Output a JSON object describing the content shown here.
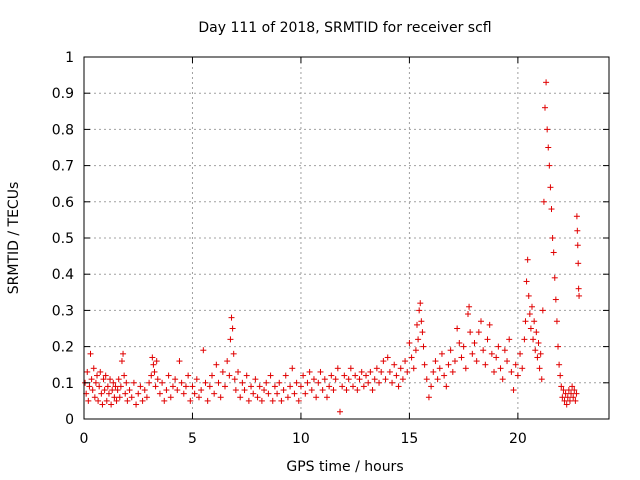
{
  "chart_data": {
    "type": "scatter",
    "title": "Day 111 of 2018, SRMTID for receiver scfl",
    "xlabel": "GPS time / hours",
    "ylabel": "SRMTID / TECUs",
    "xlim": [
      0,
      24.2
    ],
    "ylim": [
      0,
      1
    ],
    "xticks": [
      0,
      5,
      10,
      15,
      20
    ],
    "xtick_labels": [
      "0",
      "5",
      "10",
      "15",
      "20"
    ],
    "yticks": [
      0,
      0.1,
      0.2,
      0.3,
      0.4,
      0.5,
      0.6,
      0.7,
      0.8,
      0.9,
      1
    ],
    "ytick_labels": [
      "0",
      "0.1",
      "0.2",
      "0.3",
      "0.4",
      "0.5",
      "0.6",
      "0.7",
      "0.8",
      "0.9",
      "1"
    ],
    "grid": true,
    "marker": "+",
    "marker_color": "#e00000",
    "series": [
      {
        "name": "SRMTID",
        "points": [
          [
            0.05,
            0.1
          ],
          [
            0.1,
            0.07
          ],
          [
            0.15,
            0.13
          ],
          [
            0.2,
            0.05
          ],
          [
            0.25,
            0.09
          ],
          [
            0.3,
            0.18
          ],
          [
            0.35,
            0.11
          ],
          [
            0.4,
            0.08
          ],
          [
            0.45,
            0.14
          ],
          [
            0.5,
            0.06
          ],
          [
            0.55,
            0.1
          ],
          [
            0.6,
            0.12
          ],
          [
            0.65,
            0.05
          ],
          [
            0.7,
            0.09
          ],
          [
            0.75,
            0.13
          ],
          [
            0.8,
            0.07
          ],
          [
            0.85,
            0.04
          ],
          [
            0.9,
            0.11
          ],
          [
            0.95,
            0.08
          ],
          [
            1.0,
            0.12
          ],
          [
            1.05,
            0.05
          ],
          [
            1.1,
            0.09
          ],
          [
            1.15,
            0.07
          ],
          [
            1.2,
            0.11
          ],
          [
            1.25,
            0.04
          ],
          [
            1.3,
            0.08
          ],
          [
            1.35,
            0.1
          ],
          [
            1.4,
            0.06
          ],
          [
            1.45,
            0.09
          ],
          [
            1.5,
            0.05
          ],
          [
            1.55,
            0.08
          ],
          [
            1.6,
            0.11
          ],
          [
            1.65,
            0.06
          ],
          [
            1.7,
            0.09
          ],
          [
            1.75,
            0.16
          ],
          [
            1.8,
            0.18
          ],
          [
            1.85,
            0.12
          ],
          [
            1.9,
            0.07
          ],
          [
            1.95,
            0.1
          ],
          [
            2.0,
            0.05
          ],
          [
            2.1,
            0.08
          ],
          [
            2.2,
            0.06
          ],
          [
            2.3,
            0.1
          ],
          [
            2.4,
            0.04
          ],
          [
            2.5,
            0.07
          ],
          [
            2.6,
            0.09
          ],
          [
            2.7,
            0.05
          ],
          [
            2.8,
            0.08
          ],
          [
            2.9,
            0.06
          ],
          [
            3.0,
            0.1
          ],
          [
            3.1,
            0.12
          ],
          [
            3.15,
            0.17
          ],
          [
            3.2,
            0.15
          ],
          [
            3.25,
            0.13
          ],
          [
            3.3,
            0.09
          ],
          [
            3.35,
            0.16
          ],
          [
            3.4,
            0.11
          ],
          [
            3.5,
            0.07
          ],
          [
            3.6,
            0.1
          ],
          [
            3.7,
            0.05
          ],
          [
            3.8,
            0.08
          ],
          [
            3.9,
            0.12
          ],
          [
            4.0,
            0.06
          ],
          [
            4.1,
            0.09
          ],
          [
            4.2,
            0.11
          ],
          [
            4.3,
            0.08
          ],
          [
            4.4,
            0.16
          ],
          [
            4.5,
            0.1
          ],
          [
            4.6,
            0.07
          ],
          [
            4.7,
            0.09
          ],
          [
            4.8,
            0.12
          ],
          [
            4.9,
            0.05
          ],
          [
            5.0,
            0.09
          ],
          [
            5.1,
            0.07
          ],
          [
            5.2,
            0.11
          ],
          [
            5.3,
            0.06
          ],
          [
            5.4,
            0.08
          ],
          [
            5.5,
            0.19
          ],
          [
            5.6,
            0.1
          ],
          [
            5.7,
            0.05
          ],
          [
            5.8,
            0.09
          ],
          [
            5.9,
            0.12
          ],
          [
            6.0,
            0.07
          ],
          [
            6.1,
            0.15
          ],
          [
            6.2,
            0.1
          ],
          [
            6.3,
            0.06
          ],
          [
            6.4,
            0.13
          ],
          [
            6.5,
            0.09
          ],
          [
            6.6,
            0.16
          ],
          [
            6.7,
            0.12
          ],
          [
            6.75,
            0.22
          ],
          [
            6.8,
            0.28
          ],
          [
            6.85,
            0.25
          ],
          [
            6.9,
            0.18
          ],
          [
            6.95,
            0.11
          ],
          [
            7.0,
            0.08
          ],
          [
            7.1,
            0.13
          ],
          [
            7.2,
            0.06
          ],
          [
            7.3,
            0.1
          ],
          [
            7.4,
            0.08
          ],
          [
            7.5,
            0.12
          ],
          [
            7.6,
            0.05
          ],
          [
            7.7,
            0.09
          ],
          [
            7.8,
            0.07
          ],
          [
            7.9,
            0.11
          ],
          [
            8.0,
            0.06
          ],
          [
            8.1,
            0.09
          ],
          [
            8.2,
            0.05
          ],
          [
            8.3,
            0.08
          ],
          [
            8.4,
            0.1
          ],
          [
            8.5,
            0.07
          ],
          [
            8.6,
            0.12
          ],
          [
            8.7,
            0.05
          ],
          [
            8.8,
            0.09
          ],
          [
            8.9,
            0.07
          ],
          [
            9.0,
            0.1
          ],
          [
            9.1,
            0.05
          ],
          [
            9.2,
            0.08
          ],
          [
            9.3,
            0.12
          ],
          [
            9.4,
            0.06
          ],
          [
            9.5,
            0.09
          ],
          [
            9.6,
            0.14
          ],
          [
            9.7,
            0.07
          ],
          [
            9.8,
            0.1
          ],
          [
            9.9,
            0.05
          ],
          [
            10.0,
            0.09
          ],
          [
            10.1,
            0.12
          ],
          [
            10.2,
            0.07
          ],
          [
            10.3,
            0.1
          ],
          [
            10.4,
            0.13
          ],
          [
            10.5,
            0.08
          ],
          [
            10.6,
            0.11
          ],
          [
            10.7,
            0.06
          ],
          [
            10.8,
            0.1
          ],
          [
            10.9,
            0.13
          ],
          [
            11.0,
            0.08
          ],
          [
            11.1,
            0.11
          ],
          [
            11.2,
            0.06
          ],
          [
            11.3,
            0.09
          ],
          [
            11.4,
            0.12
          ],
          [
            11.5,
            0.08
          ],
          [
            11.6,
            0.11
          ],
          [
            11.7,
            0.14
          ],
          [
            11.8,
            0.02
          ],
          [
            11.9,
            0.09
          ],
          [
            12.0,
            0.12
          ],
          [
            12.1,
            0.08
          ],
          [
            12.2,
            0.11
          ],
          [
            12.3,
            0.14
          ],
          [
            12.4,
            0.09
          ],
          [
            12.5,
            0.12
          ],
          [
            12.6,
            0.08
          ],
          [
            12.7,
            0.11
          ],
          [
            12.8,
            0.13
          ],
          [
            12.9,
            0.09
          ],
          [
            13.0,
            0.12
          ],
          [
            13.1,
            0.1
          ],
          [
            13.2,
            0.13
          ],
          [
            13.3,
            0.08
          ],
          [
            13.4,
            0.11
          ],
          [
            13.5,
            0.14
          ],
          [
            13.6,
            0.1
          ],
          [
            13.7,
            0.13
          ],
          [
            13.8,
            0.16
          ],
          [
            13.9,
            0.11
          ],
          [
            14.0,
            0.17
          ],
          [
            14.1,
            0.13
          ],
          [
            14.2,
            0.1
          ],
          [
            14.3,
            0.15
          ],
          [
            14.4,
            0.12
          ],
          [
            14.5,
            0.09
          ],
          [
            14.6,
            0.14
          ],
          [
            14.7,
            0.11
          ],
          [
            14.8,
            0.16
          ],
          [
            14.9,
            0.13
          ],
          [
            15.0,
            0.21
          ],
          [
            15.1,
            0.17
          ],
          [
            15.2,
            0.14
          ],
          [
            15.3,
            0.19
          ],
          [
            15.35,
            0.26
          ],
          [
            15.4,
            0.22
          ],
          [
            15.45,
            0.3
          ],
          [
            15.5,
            0.32
          ],
          [
            15.55,
            0.27
          ],
          [
            15.6,
            0.24
          ],
          [
            15.65,
            0.2
          ],
          [
            15.7,
            0.15
          ],
          [
            15.8,
            0.11
          ],
          [
            15.9,
            0.06
          ],
          [
            16.0,
            0.09
          ],
          [
            16.1,
            0.13
          ],
          [
            16.2,
            0.16
          ],
          [
            16.3,
            0.11
          ],
          [
            16.4,
            0.14
          ],
          [
            16.5,
            0.18
          ],
          [
            16.6,
            0.12
          ],
          [
            16.7,
            0.09
          ],
          [
            16.8,
            0.15
          ],
          [
            16.9,
            0.19
          ],
          [
            17.0,
            0.13
          ],
          [
            17.1,
            0.16
          ],
          [
            17.2,
            0.25
          ],
          [
            17.3,
            0.21
          ],
          [
            17.4,
            0.17
          ],
          [
            17.5,
            0.2
          ],
          [
            17.6,
            0.14
          ],
          [
            17.7,
            0.29
          ],
          [
            17.75,
            0.31
          ],
          [
            17.8,
            0.24
          ],
          [
            17.9,
            0.18
          ],
          [
            18.0,
            0.21
          ],
          [
            18.1,
            0.16
          ],
          [
            18.2,
            0.24
          ],
          [
            18.3,
            0.27
          ],
          [
            18.4,
            0.19
          ],
          [
            18.5,
            0.15
          ],
          [
            18.6,
            0.22
          ],
          [
            18.7,
            0.26
          ],
          [
            18.8,
            0.18
          ],
          [
            18.9,
            0.13
          ],
          [
            19.0,
            0.17
          ],
          [
            19.1,
            0.2
          ],
          [
            19.2,
            0.14
          ],
          [
            19.3,
            0.11
          ],
          [
            19.4,
            0.19
          ],
          [
            19.5,
            0.16
          ],
          [
            19.6,
            0.22
          ],
          [
            19.7,
            0.13
          ],
          [
            19.8,
            0.08
          ],
          [
            19.9,
            0.15
          ],
          [
            20.0,
            0.12
          ],
          [
            20.1,
            0.18
          ],
          [
            20.2,
            0.14
          ],
          [
            20.3,
            0.22
          ],
          [
            20.35,
            0.27
          ],
          [
            20.4,
            0.38
          ],
          [
            20.45,
            0.44
          ],
          [
            20.5,
            0.34
          ],
          [
            20.55,
            0.29
          ],
          [
            20.6,
            0.25
          ],
          [
            20.65,
            0.31
          ],
          [
            20.7,
            0.22
          ],
          [
            20.75,
            0.27
          ],
          [
            20.8,
            0.19
          ],
          [
            20.85,
            0.24
          ],
          [
            20.9,
            0.17
          ],
          [
            20.95,
            0.21
          ],
          [
            21.0,
            0.14
          ],
          [
            21.05,
            0.18
          ],
          [
            21.1,
            0.11
          ],
          [
            21.15,
            0.3
          ],
          [
            21.2,
            0.6
          ],
          [
            21.25,
            0.86
          ],
          [
            21.3,
            0.93
          ],
          [
            21.35,
            0.8
          ],
          [
            21.4,
            0.75
          ],
          [
            21.45,
            0.7
          ],
          [
            21.5,
            0.64
          ],
          [
            21.55,
            0.58
          ],
          [
            21.6,
            0.5
          ],
          [
            21.65,
            0.46
          ],
          [
            21.7,
            0.39
          ],
          [
            21.75,
            0.33
          ],
          [
            21.8,
            0.27
          ],
          [
            21.85,
            0.2
          ],
          [
            21.9,
            0.15
          ],
          [
            21.95,
            0.12
          ],
          [
            22.0,
            0.09
          ],
          [
            22.05,
            0.06
          ],
          [
            22.1,
            0.08
          ],
          [
            22.15,
            0.05
          ],
          [
            22.2,
            0.07
          ],
          [
            22.25,
            0.04
          ],
          [
            22.3,
            0.06
          ],
          [
            22.35,
            0.08
          ],
          [
            22.4,
            0.05
          ],
          [
            22.45,
            0.07
          ],
          [
            22.5,
            0.09
          ],
          [
            22.55,
            0.06
          ],
          [
            22.6,
            0.08
          ],
          [
            22.65,
            0.05
          ],
          [
            22.7,
            0.07
          ],
          [
            22.72,
            0.56
          ],
          [
            22.74,
            0.52
          ],
          [
            22.76,
            0.48
          ],
          [
            22.78,
            0.43
          ],
          [
            22.8,
            0.36
          ],
          [
            22.82,
            0.34
          ]
        ]
      }
    ]
  }
}
